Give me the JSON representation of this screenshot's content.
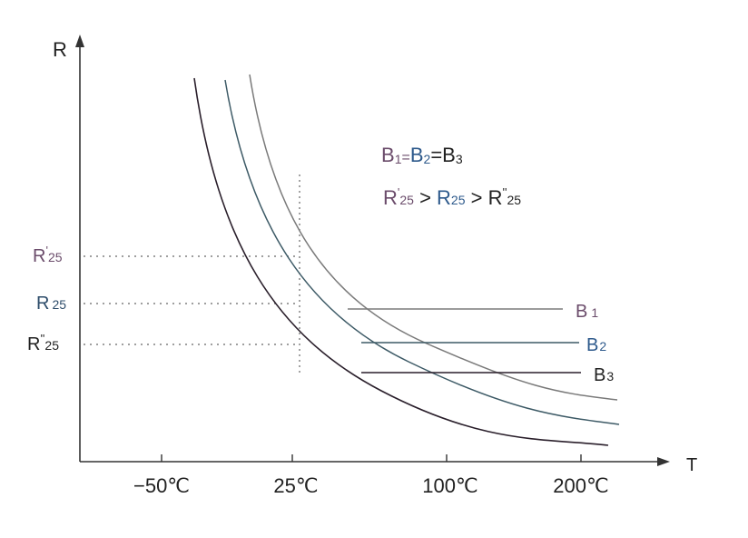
{
  "axes": {
    "y_label": "R",
    "x_label": "T",
    "x_ticks": [
      "−50℃",
      "25℃",
      "100℃",
      "200℃"
    ]
  },
  "y_levels": {
    "r25_prime": {
      "main": "R",
      "mark": "'",
      "sub": "25"
    },
    "r25": {
      "main": "R",
      "sub": "25"
    },
    "r25_dprime": {
      "main": "R",
      "mark": "''",
      "sub": "25"
    }
  },
  "equation": {
    "b1": "B",
    "b1_sub": "1",
    "eq1": "=",
    "b2": "B",
    "b2_sub": "2",
    "eq2": "=",
    "b3": "B",
    "b3_sub": "3"
  },
  "inequality": {
    "r1": "R",
    "r1_mark": "'",
    "r1_sub": "25",
    "gt1": " > ",
    "r2": "R",
    "r2_sub": "25",
    "gt2": " > ",
    "r3": "R",
    "r3_mark": "''",
    "r3_sub": "25"
  },
  "curves": [
    {
      "label": "B",
      "sub": "1",
      "color": "#777777"
    },
    {
      "label": "B",
      "sub": "2",
      "color": "#3d5a66"
    },
    {
      "label": "B",
      "sub": "3",
      "color": "#2a1f2b"
    }
  ],
  "colors": {
    "r25_prime": "#6b4c6b",
    "r25": "#2e4d6b",
    "r25_dprime": "#222222",
    "b1_text": "#6b4c6b",
    "b2_text": "#2e5a8c",
    "b3_text": "#222222"
  }
}
